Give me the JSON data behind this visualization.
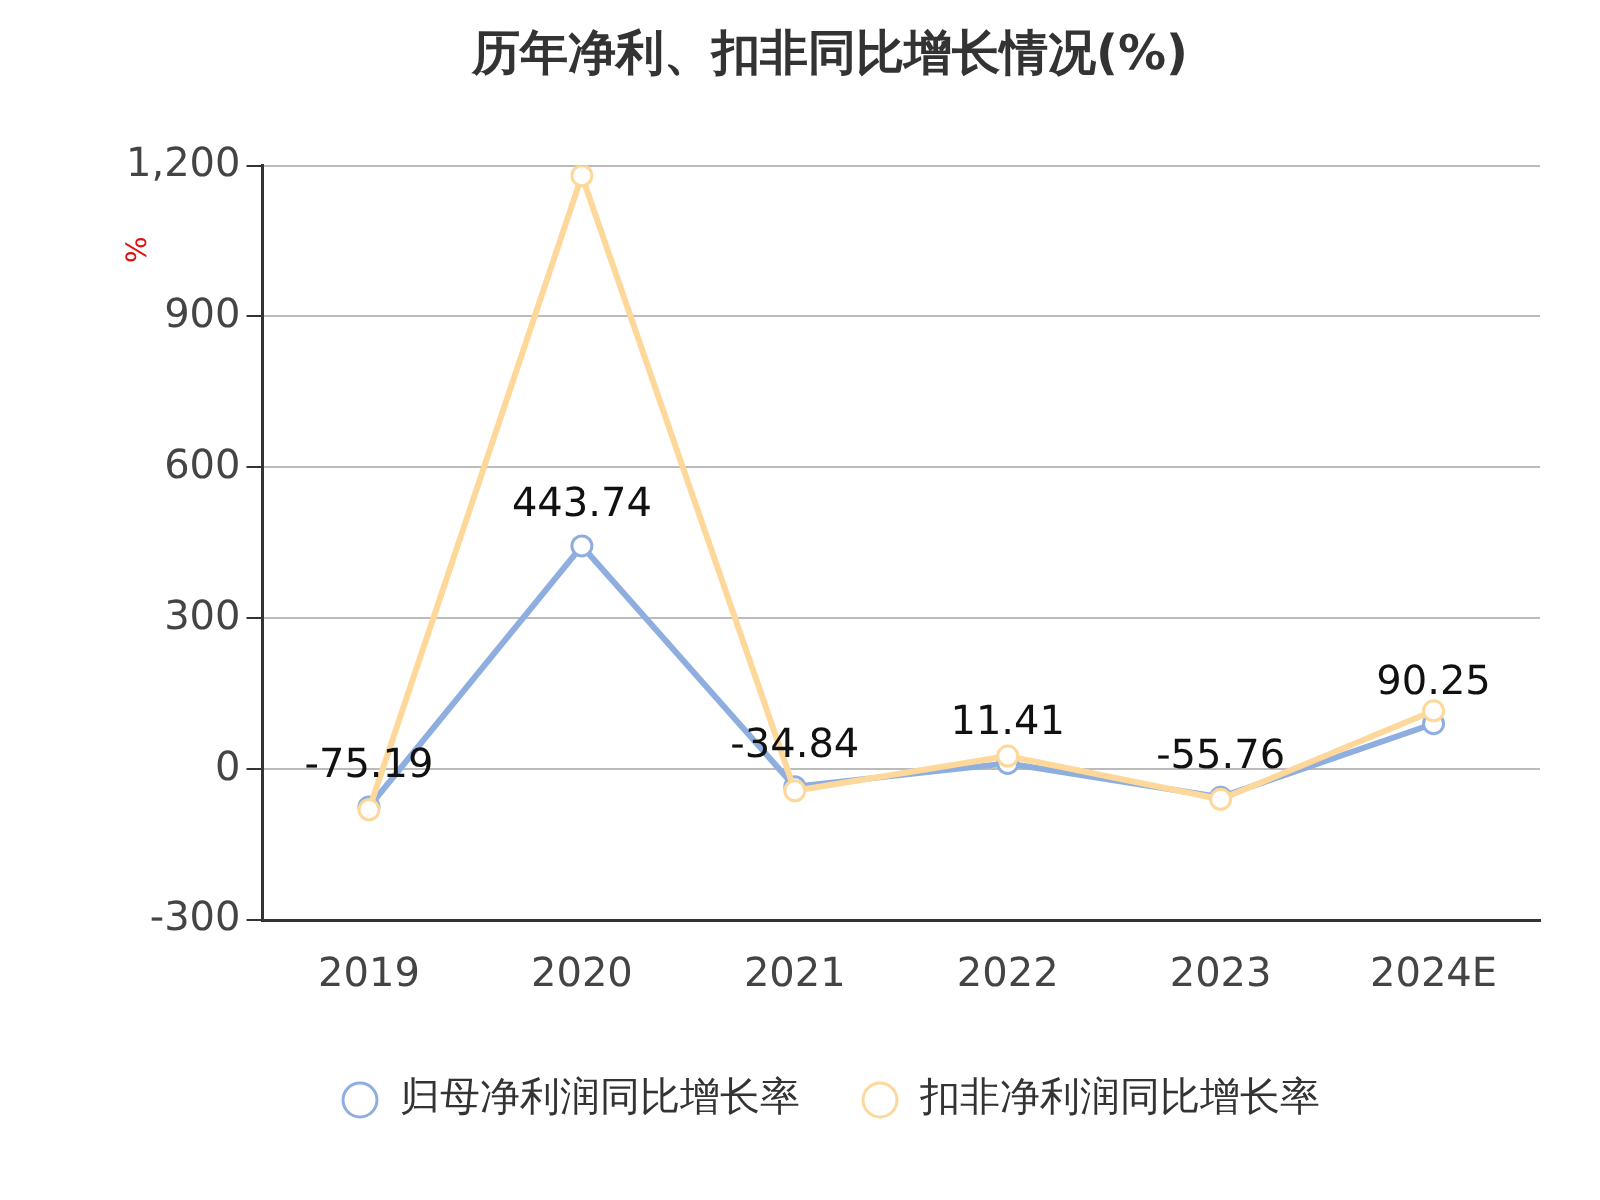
{
  "chart_data": {
    "type": "line",
    "title": "历年净利、扣非同比增长情况(%)",
    "ylabel": "%",
    "categories": [
      "2019",
      "2020",
      "2021",
      "2022",
      "2023",
      "2024E"
    ],
    "series": [
      {
        "name": "归母净利润同比增长率",
        "color": "#8eaee0",
        "values": [
          -75.19,
          443.74,
          -34.84,
          11.41,
          -55.76,
          90.25
        ],
        "value_labels": [
          "-75.19",
          "443.74",
          "-34.84",
          "11.41",
          "-55.76",
          "90.25"
        ]
      },
      {
        "name": "扣非净利润同比增长率",
        "color": "#fdd89a",
        "values": [
          -81,
          1180,
          -43,
          26,
          -60,
          116
        ]
      }
    ],
    "ylim": [
      -300,
      1200
    ],
    "yticks": [
      {
        "value": -300,
        "label": "-300"
      },
      {
        "value": 0,
        "label": "0"
      },
      {
        "value": 300,
        "label": "300"
      },
      {
        "value": 600,
        "label": "600"
      },
      {
        "value": 900,
        "label": "900"
      },
      {
        "value": 1200,
        "label": "1,200"
      }
    ],
    "grid": "y",
    "legend": "bottom",
    "marker": "circle",
    "line_style": "solid"
  }
}
